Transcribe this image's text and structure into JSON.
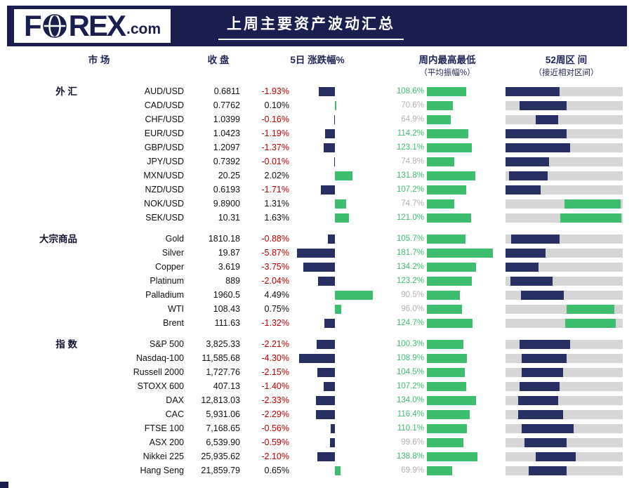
{
  "header": {
    "logo_pre": "F",
    "logo_post": "REX",
    "logo_suffix": ".com",
    "title": "上周主要资产波动汇总"
  },
  "columns": {
    "market": "市 场",
    "close": "收 盘",
    "change": "5日 涨跌幅%",
    "weekly": "周内最高最低",
    "weekly_sub": "（平均振幅%）",
    "range52": "52周区 间",
    "range52_sub": "（接近相对区间）"
  },
  "colors": {
    "banner": "#191e4f",
    "navy": "#272f63",
    "green": "#3dbd6e",
    "red": "#c00000",
    "gray_label": "#b2b2b2",
    "track": "#d6d6d6"
  },
  "chart_data": {
    "type": "table",
    "title": "上周主要资产波动汇总",
    "columns": [
      "市场",
      "收盘",
      "5日涨跌幅%",
      "周内最高最低（平均振幅%）",
      "52周区间（接近相对区间）"
    ],
    "groups": [
      {
        "label": "外 汇",
        "rows": [
          {
            "name": "AUD/USD",
            "close": "0.6811",
            "change": "-1.93%",
            "change_val": -1.93,
            "amp": "108.6%",
            "amp_val": 108.6,
            "range_pct": [
              0,
              46
            ],
            "range_color": "navy"
          },
          {
            "name": "CAD/USD",
            "close": "0.7762",
            "change": "0.10%",
            "change_val": 0.1,
            "amp": "70.6%",
            "amp_val": 70.6,
            "range_pct": [
              12,
              52
            ],
            "range_color": "navy"
          },
          {
            "name": "CHF/USD",
            "close": "1.0399",
            "change": "-0.16%",
            "change_val": -0.16,
            "amp": "64.9%",
            "amp_val": 64.9,
            "range_pct": [
              26,
              45
            ],
            "range_color": "navy"
          },
          {
            "name": "EUR/USD",
            "close": "1.0423",
            "change": "-1.19%",
            "change_val": -1.19,
            "amp": "114.2%",
            "amp_val": 114.2,
            "range_pct": [
              0,
              52
            ],
            "range_color": "navy"
          },
          {
            "name": "GBP/USD",
            "close": "1.2097",
            "change": "-1.37%",
            "change_val": -1.37,
            "amp": "123.1%",
            "amp_val": 123.1,
            "range_pct": [
              0,
              55
            ],
            "range_color": "navy"
          },
          {
            "name": "JPY/USD",
            "close": "0.7392",
            "change": "-0.01%",
            "change_val": -0.01,
            "amp": "74.8%",
            "amp_val": 74.8,
            "range_pct": [
              0,
              37
            ],
            "range_color": "navy"
          },
          {
            "name": "MXN/USD",
            "close": "20.25",
            "change": "2.02%",
            "change_val": 2.02,
            "amp": "131.8%",
            "amp_val": 131.8,
            "range_pct": [
              3,
              36
            ],
            "range_color": "navy"
          },
          {
            "name": "NZD/USD",
            "close": "0.6193",
            "change": "-1.71%",
            "change_val": -1.71,
            "amp": "107.2%",
            "amp_val": 107.2,
            "range_pct": [
              0,
              30
            ],
            "range_color": "navy"
          },
          {
            "name": "NOK/USD",
            "close": "9.8900",
            "change": "1.31%",
            "change_val": 1.31,
            "amp": "74.7%",
            "amp_val": 74.7,
            "range_pct": [
              50,
              98
            ],
            "range_color": "green"
          },
          {
            "name": "SEK/USD",
            "close": "10.31",
            "change": "1.63%",
            "change_val": 1.63,
            "amp": "121.0%",
            "amp_val": 121.0,
            "range_pct": [
              47,
              99
            ],
            "range_color": "green"
          }
        ]
      },
      {
        "label": "大宗商品",
        "rows": [
          {
            "name": "Gold",
            "close": "1810.18",
            "change": "-0.88%",
            "change_val": -0.88,
            "amp": "105.7%",
            "amp_val": 105.7,
            "range_pct": [
              5,
              46
            ],
            "range_color": "navy"
          },
          {
            "name": "Silver",
            "close": "19.87",
            "change": "-5.87%",
            "change_val": -5.87,
            "amp": "181.7%",
            "amp_val": 181.7,
            "range_pct": [
              0,
              34
            ],
            "range_color": "navy"
          },
          {
            "name": "Copper",
            "close": "3.619",
            "change": "-3.75%",
            "change_val": -3.75,
            "amp": "134.2%",
            "amp_val": 134.2,
            "range_pct": [
              0,
              28
            ],
            "range_color": "navy"
          },
          {
            "name": "Platinum",
            "close": "889",
            "change": "-2.04%",
            "change_val": -2.04,
            "amp": "123.2%",
            "amp_val": 123.2,
            "range_pct": [
              4,
              40
            ],
            "range_color": "navy"
          },
          {
            "name": "Palladium",
            "close": "1960.5",
            "change": "4.49%",
            "change_val": 4.49,
            "amp": "90.5%",
            "amp_val": 90.5,
            "range_pct": [
              13,
              50
            ],
            "range_color": "navy"
          },
          {
            "name": "WTI",
            "close": "108.43",
            "change": "0.75%",
            "change_val": 0.75,
            "amp": "96.0%",
            "amp_val": 96.0,
            "range_pct": [
              52,
              93
            ],
            "range_color": "green"
          },
          {
            "name": "Brent",
            "close": "111.63",
            "change": "-1.32%",
            "change_val": -1.32,
            "amp": "124.7%",
            "amp_val": 124.7,
            "range_pct": [
              51,
              94
            ],
            "range_color": "green"
          }
        ]
      },
      {
        "label": "指 数",
        "rows": [
          {
            "name": "S&P 500",
            "close": "3,825.33",
            "change": "-2.21%",
            "change_val": -2.21,
            "amp": "100.3%",
            "amp_val": 100.3,
            "range_pct": [
              12,
              55
            ],
            "range_color": "navy"
          },
          {
            "name": "Nasdaq-100",
            "close": "11,585.68",
            "change": "-4.30%",
            "change_val": -4.3,
            "amp": "108.9%",
            "amp_val": 108.9,
            "range_pct": [
              14,
              52
            ],
            "range_color": "navy"
          },
          {
            "name": "Russell 2000",
            "close": "1,727.76",
            "change": "-2.15%",
            "change_val": -2.15,
            "amp": "104.5%",
            "amp_val": 104.5,
            "range_pct": [
              14,
              49
            ],
            "range_color": "navy"
          },
          {
            "name": "STOXX 600",
            "close": "407.13",
            "change": "-1.40%",
            "change_val": -1.4,
            "amp": "107.2%",
            "amp_val": 107.2,
            "range_pct": [
              12,
              46
            ],
            "range_color": "navy"
          },
          {
            "name": "DAX",
            "close": "12,813.03",
            "change": "-2.33%",
            "change_val": -2.33,
            "amp": "134.0%",
            "amp_val": 134.0,
            "range_pct": [
              11,
              45
            ],
            "range_color": "navy"
          },
          {
            "name": "CAC",
            "close": "5,931.06",
            "change": "-2.29%",
            "change_val": -2.29,
            "amp": "116.4%",
            "amp_val": 116.4,
            "range_pct": [
              11,
              49
            ],
            "range_color": "navy"
          },
          {
            "name": "FTSE 100",
            "close": "7,168.65",
            "change": "-0.56%",
            "change_val": -0.56,
            "amp": "110.1%",
            "amp_val": 110.1,
            "range_pct": [
              14,
              58
            ],
            "range_color": "navy"
          },
          {
            "name": "ASX 200",
            "close": "6,539.90",
            "change": "-0.59%",
            "change_val": -0.59,
            "amp": "99.6%",
            "amp_val": 99.6,
            "range_pct": [
              16,
              52
            ],
            "range_color": "navy"
          },
          {
            "name": "Nikkei 225",
            "close": "25,935.62",
            "change": "-2.10%",
            "change_val": -2.1,
            "amp": "138.8%",
            "amp_val": 138.8,
            "range_pct": [
              26,
              60
            ],
            "range_color": "navy"
          },
          {
            "name": "Hang Seng",
            "close": "21,859.79",
            "change": "0.65%",
            "change_val": 0.65,
            "amp": "69.9%",
            "amp_val": 69.9,
            "range_pct": [
              20,
              52
            ],
            "range_color": "navy"
          }
        ]
      }
    ]
  }
}
